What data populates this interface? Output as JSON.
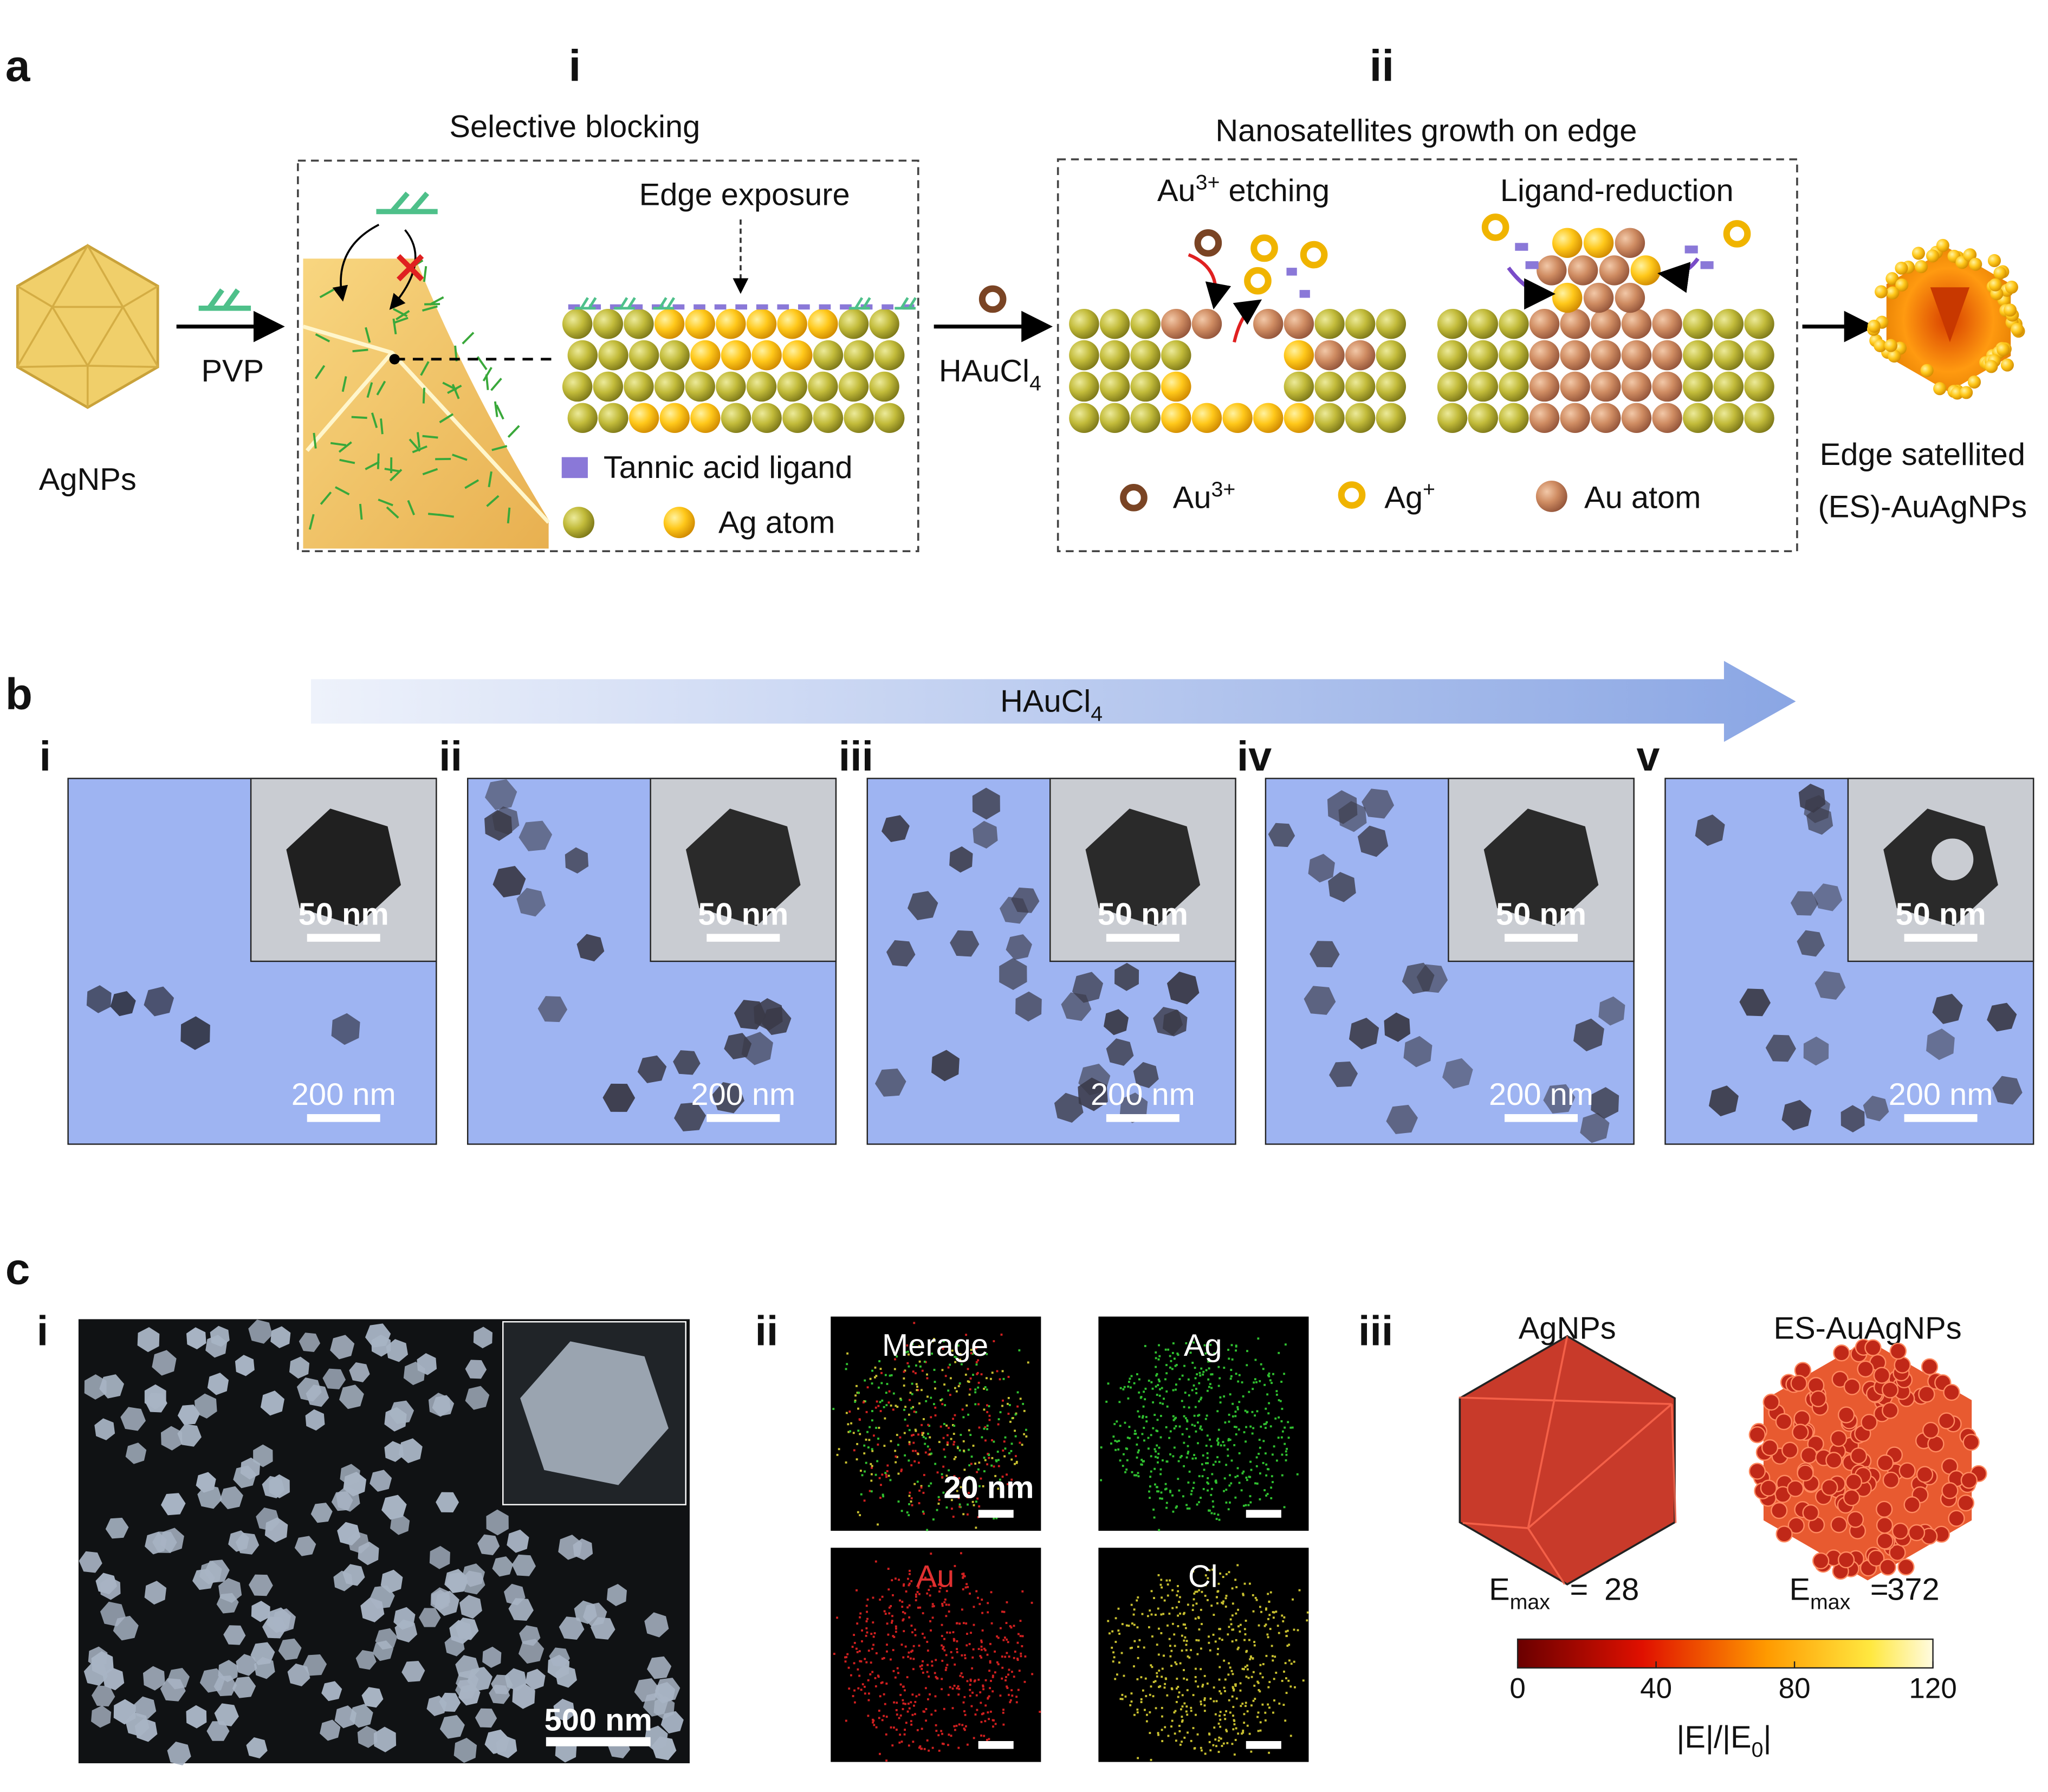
{
  "panel_a": {
    "label": "a",
    "start": "AgNPs",
    "reagent_1": "PVP",
    "step_i": {
      "numeral": "i",
      "title": "Selective blocking",
      "edge_exposure": "Edge exposure",
      "legend": [
        "Tannic acid ligand",
        "Ag atom"
      ]
    },
    "reagent_2": {
      "base": "HAuCl",
      "sub": "4"
    },
    "step_ii": {
      "numeral": "ii",
      "title": "Nanosatellites growth on edge",
      "etching": {
        "base": "Au",
        "sup": "3+",
        "rest": " etching"
      },
      "reduction": "Ligand-reduction",
      "legend": [
        {
          "base": "Au",
          "sup": "3+"
        },
        {
          "base": "Ag",
          "sup": "+"
        },
        "Au atom"
      ]
    },
    "product": [
      "Edge satellited",
      "(ES)-AuAgNPs"
    ]
  },
  "panel_b": {
    "label": "b",
    "arrow": {
      "base": "HAuCl",
      "sub": "4"
    },
    "images": [
      {
        "numeral": "i",
        "inset_scale": "50 nm",
        "scale": "200 nm"
      },
      {
        "numeral": "ii",
        "inset_scale": "50 nm",
        "scale": "200 nm"
      },
      {
        "numeral": "iii",
        "inset_scale": "50 nm",
        "scale": "200 nm"
      },
      {
        "numeral": "iv",
        "inset_scale": "50 nm",
        "scale": "200 nm"
      },
      {
        "numeral": "v",
        "inset_scale": "50 nm",
        "scale": "200 nm"
      }
    ]
  },
  "panel_c": {
    "label": "c",
    "sem": {
      "numeral": "i",
      "scale": "500 nm"
    },
    "eds": {
      "numeral": "ii",
      "maps": [
        "Merage",
        "Ag",
        "Au",
        "Cl"
      ],
      "scale": "20 nm"
    },
    "simulation": {
      "numeral": "iii",
      "models": [
        {
          "name": "AgNPs",
          "emax": 28
        },
        {
          "name": "ES-AuAgNPs",
          "emax": 372
        }
      ],
      "emax_label": {
        "base": "E",
        "sub": "max",
        "eq": "="
      },
      "colorbar": {
        "ticks": [
          0,
          40,
          80,
          120
        ],
        "label": {
          "a": "|E|/|E",
          "sub": "0",
          "b": "|"
        }
      }
    }
  }
}
